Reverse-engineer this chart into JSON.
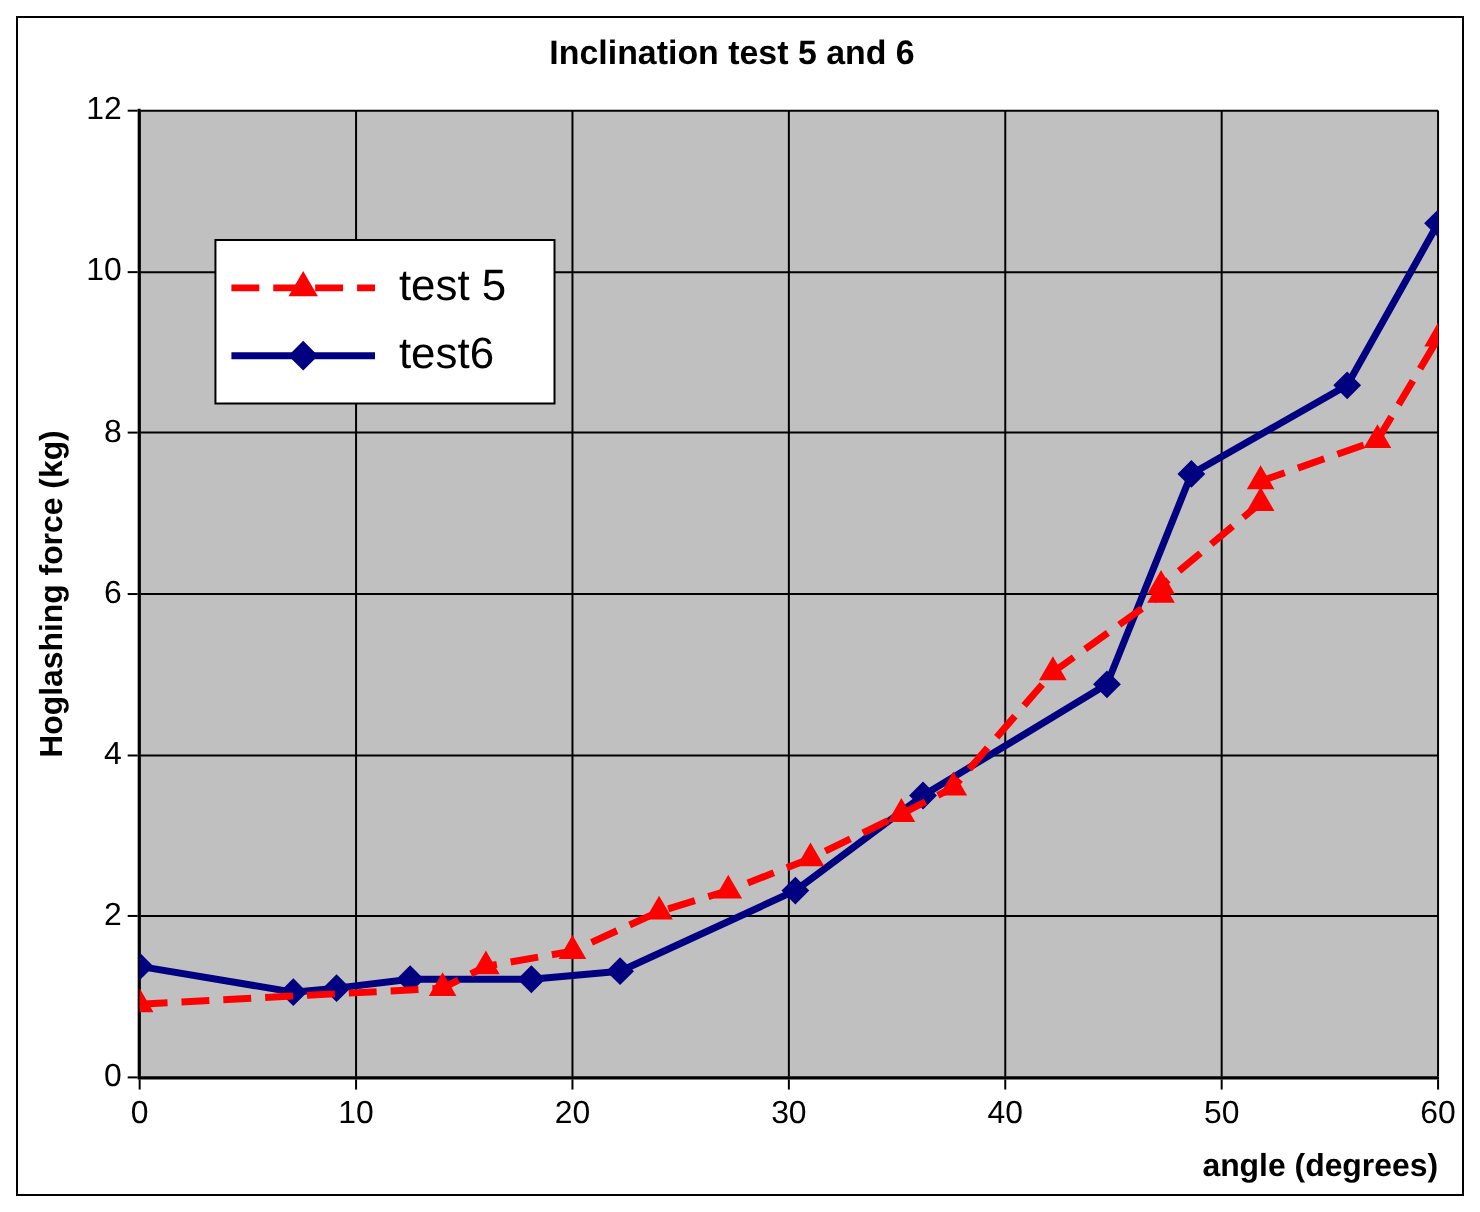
{
  "chart_data": {
    "type": "line",
    "title": "Inclination test 5 and 6",
    "xlabel": "angle (degrees)",
    "ylabel": "Hoglashing force (kg)",
    "xlim": [
      0,
      60
    ],
    "xticks": [
      0,
      10,
      20,
      30,
      40,
      50,
      60
    ],
    "ylim": [
      0,
      12
    ],
    "yticks": [
      0,
      2,
      4,
      6,
      8,
      10,
      12
    ],
    "grid": true,
    "legend": "top left",
    "series": [
      {
        "name": "test 5",
        "color": "#ff0000",
        "line_style": "dashed",
        "marker": "triangle",
        "x": [
          0,
          14,
          16,
          20,
          24,
          27.2,
          31,
          35.2,
          37.6,
          42.2,
          47.2,
          47.2,
          51.8,
          51.8,
          57.2,
          60
        ],
        "values": [
          0.91,
          1.11,
          1.38,
          1.57,
          2.06,
          2.32,
          2.72,
          3.27,
          3.6,
          5.03,
          5.99,
          6.1,
          7.13,
          7.4,
          7.91,
          9.17
        ]
      },
      {
        "name": "test6",
        "color": "#000080",
        "line_style": "solid",
        "marker": "diamond",
        "x": [
          0,
          7.1,
          9.1,
          12.5,
          18.1,
          22.2,
          30.3,
          36.2,
          44.7,
          48.6,
          55.8,
          60
        ],
        "values": [
          1.38,
          1.06,
          1.11,
          1.22,
          1.22,
          1.32,
          2.32,
          3.5,
          4.88,
          7.49,
          8.59,
          10.6
        ]
      }
    ]
  }
}
